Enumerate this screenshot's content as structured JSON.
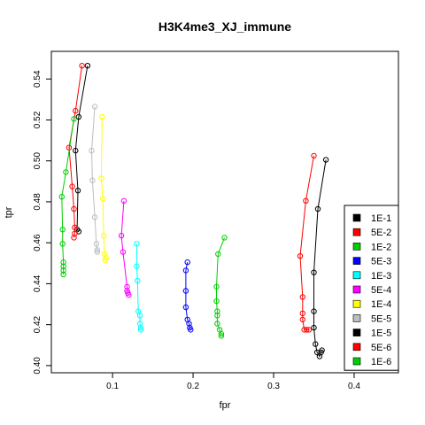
{
  "chart_data": {
    "type": "line",
    "title": "H3K4me3_XJ_immune",
    "xlabel": "fpr",
    "ylabel": "tpr",
    "xlim": [
      0.024,
      0.455
    ],
    "ylim": [
      0.3965,
      0.5535
    ],
    "x_ticks": [
      0.1,
      0.2,
      0.3,
      0.4
    ],
    "x_tick_labels": [
      "0.1",
      "0.2",
      "0.3",
      "0.4"
    ],
    "y_ticks": [
      0.4,
      0.42,
      0.44,
      0.46,
      0.48,
      0.5,
      0.52,
      0.54
    ],
    "y_tick_labels": [
      "0.40",
      "0.42",
      "0.44",
      "0.46",
      "0.48",
      "0.50",
      "0.52",
      "0.54"
    ],
    "grid": false,
    "legend_position": "bottom-right",
    "series": [
      {
        "name": "1E-1",
        "color": "#000000",
        "points": [
          [
            0.069,
            0.5465
          ],
          [
            0.058,
            0.5215
          ],
          [
            0.054,
            0.505
          ],
          [
            0.057,
            0.4855
          ],
          [
            0.056,
            0.4665
          ],
          [
            0.058,
            0.4655
          ]
        ]
      },
      {
        "name": "5E-2",
        "color": "#ff0000",
        "points": [
          [
            0.062,
            0.5465
          ],
          [
            0.054,
            0.5245
          ],
          [
            0.046,
            0.5065
          ],
          [
            0.05,
            0.4875
          ],
          [
            0.052,
            0.4765
          ],
          [
            0.053,
            0.4675
          ],
          [
            0.053,
            0.4645
          ],
          [
            0.052,
            0.4625
          ]
        ]
      },
      {
        "name": "1E-2",
        "color": "#00cd00",
        "points": [
          [
            0.052,
            0.5205
          ],
          [
            0.042,
            0.4945
          ],
          [
            0.037,
            0.4825
          ],
          [
            0.038,
            0.4665
          ],
          [
            0.038,
            0.4595
          ],
          [
            0.039,
            0.4505
          ],
          [
            0.039,
            0.4485
          ],
          [
            0.039,
            0.4465
          ],
          [
            0.039,
            0.4445
          ]
        ]
      },
      {
        "name": "5E-3",
        "color": "#0000ff",
        "points": [
          [
            0.193,
            0.4505
          ],
          [
            0.191,
            0.4465
          ],
          [
            0.191,
            0.4365
          ],
          [
            0.191,
            0.4285
          ],
          [
            0.193,
            0.4225
          ],
          [
            0.195,
            0.4205
          ],
          [
            0.196,
            0.4185
          ],
          [
            0.197,
            0.4175
          ]
        ]
      },
      {
        "name": "1E-3",
        "color": "#00ffff",
        "points": [
          [
            0.13,
            0.4595
          ],
          [
            0.13,
            0.4485
          ],
          [
            0.131,
            0.4415
          ],
          [
            0.132,
            0.4265
          ],
          [
            0.134,
            0.4245
          ],
          [
            0.134,
            0.4205
          ],
          [
            0.135,
            0.4185
          ],
          [
            0.135,
            0.4175
          ]
        ]
      },
      {
        "name": "5E-4",
        "color": "#ff00ff",
        "points": [
          [
            0.114,
            0.4805
          ],
          [
            0.111,
            0.4635
          ],
          [
            0.113,
            0.4555
          ],
          [
            0.118,
            0.4385
          ],
          [
            0.118,
            0.4365
          ],
          [
            0.119,
            0.4355
          ],
          [
            0.12,
            0.4345
          ]
        ]
      },
      {
        "name": "1E-4",
        "color": "#ffff00",
        "points": [
          [
            0.087,
            0.5215
          ],
          [
            0.086,
            0.4915
          ],
          [
            0.088,
            0.4815
          ],
          [
            0.089,
            0.4635
          ],
          [
            0.09,
            0.4545
          ],
          [
            0.092,
            0.4525
          ],
          [
            0.091,
            0.4515
          ]
        ]
      },
      {
        "name": "5E-5",
        "color": "#bebebe",
        "points": [
          [
            0.078,
            0.5265
          ],
          [
            0.074,
            0.505
          ],
          [
            0.075,
            0.4905
          ],
          [
            0.078,
            0.4725
          ],
          [
            0.08,
            0.4595
          ],
          [
            0.081,
            0.4565
          ],
          [
            0.081,
            0.4555
          ]
        ]
      },
      {
        "name": "1E-5",
        "color": "#000000",
        "points": [
          [
            0.365,
            0.5005
          ],
          [
            0.355,
            0.4765
          ],
          [
            0.35,
            0.4455
          ],
          [
            0.35,
            0.4265
          ],
          [
            0.35,
            0.4185
          ],
          [
            0.352,
            0.4105
          ],
          [
            0.354,
            0.4065
          ],
          [
            0.357,
            0.4045
          ],
          [
            0.359,
            0.4065
          ],
          [
            0.36,
            0.4075
          ]
        ]
      },
      {
        "name": "5E-6",
        "color": "#ff0000",
        "points": [
          [
            0.35,
            0.5025
          ],
          [
            0.34,
            0.4805
          ],
          [
            0.333,
            0.4535
          ],
          [
            0.336,
            0.4335
          ],
          [
            0.336,
            0.4255
          ],
          [
            0.336,
            0.4225
          ],
          [
            0.338,
            0.4175
          ],
          [
            0.341,
            0.4175
          ],
          [
            0.344,
            0.4175
          ]
        ]
      },
      {
        "name": "1E-6",
        "color": "#00cd00",
        "points": [
          [
            0.239,
            0.4625
          ],
          [
            0.231,
            0.4545
          ],
          [
            0.229,
            0.4385
          ],
          [
            0.229,
            0.4315
          ],
          [
            0.23,
            0.4265
          ],
          [
            0.23,
            0.4245
          ],
          [
            0.23,
            0.4205
          ],
          [
            0.233,
            0.4175
          ],
          [
            0.235,
            0.4155
          ],
          [
            0.235,
            0.4145
          ]
        ]
      }
    ]
  }
}
